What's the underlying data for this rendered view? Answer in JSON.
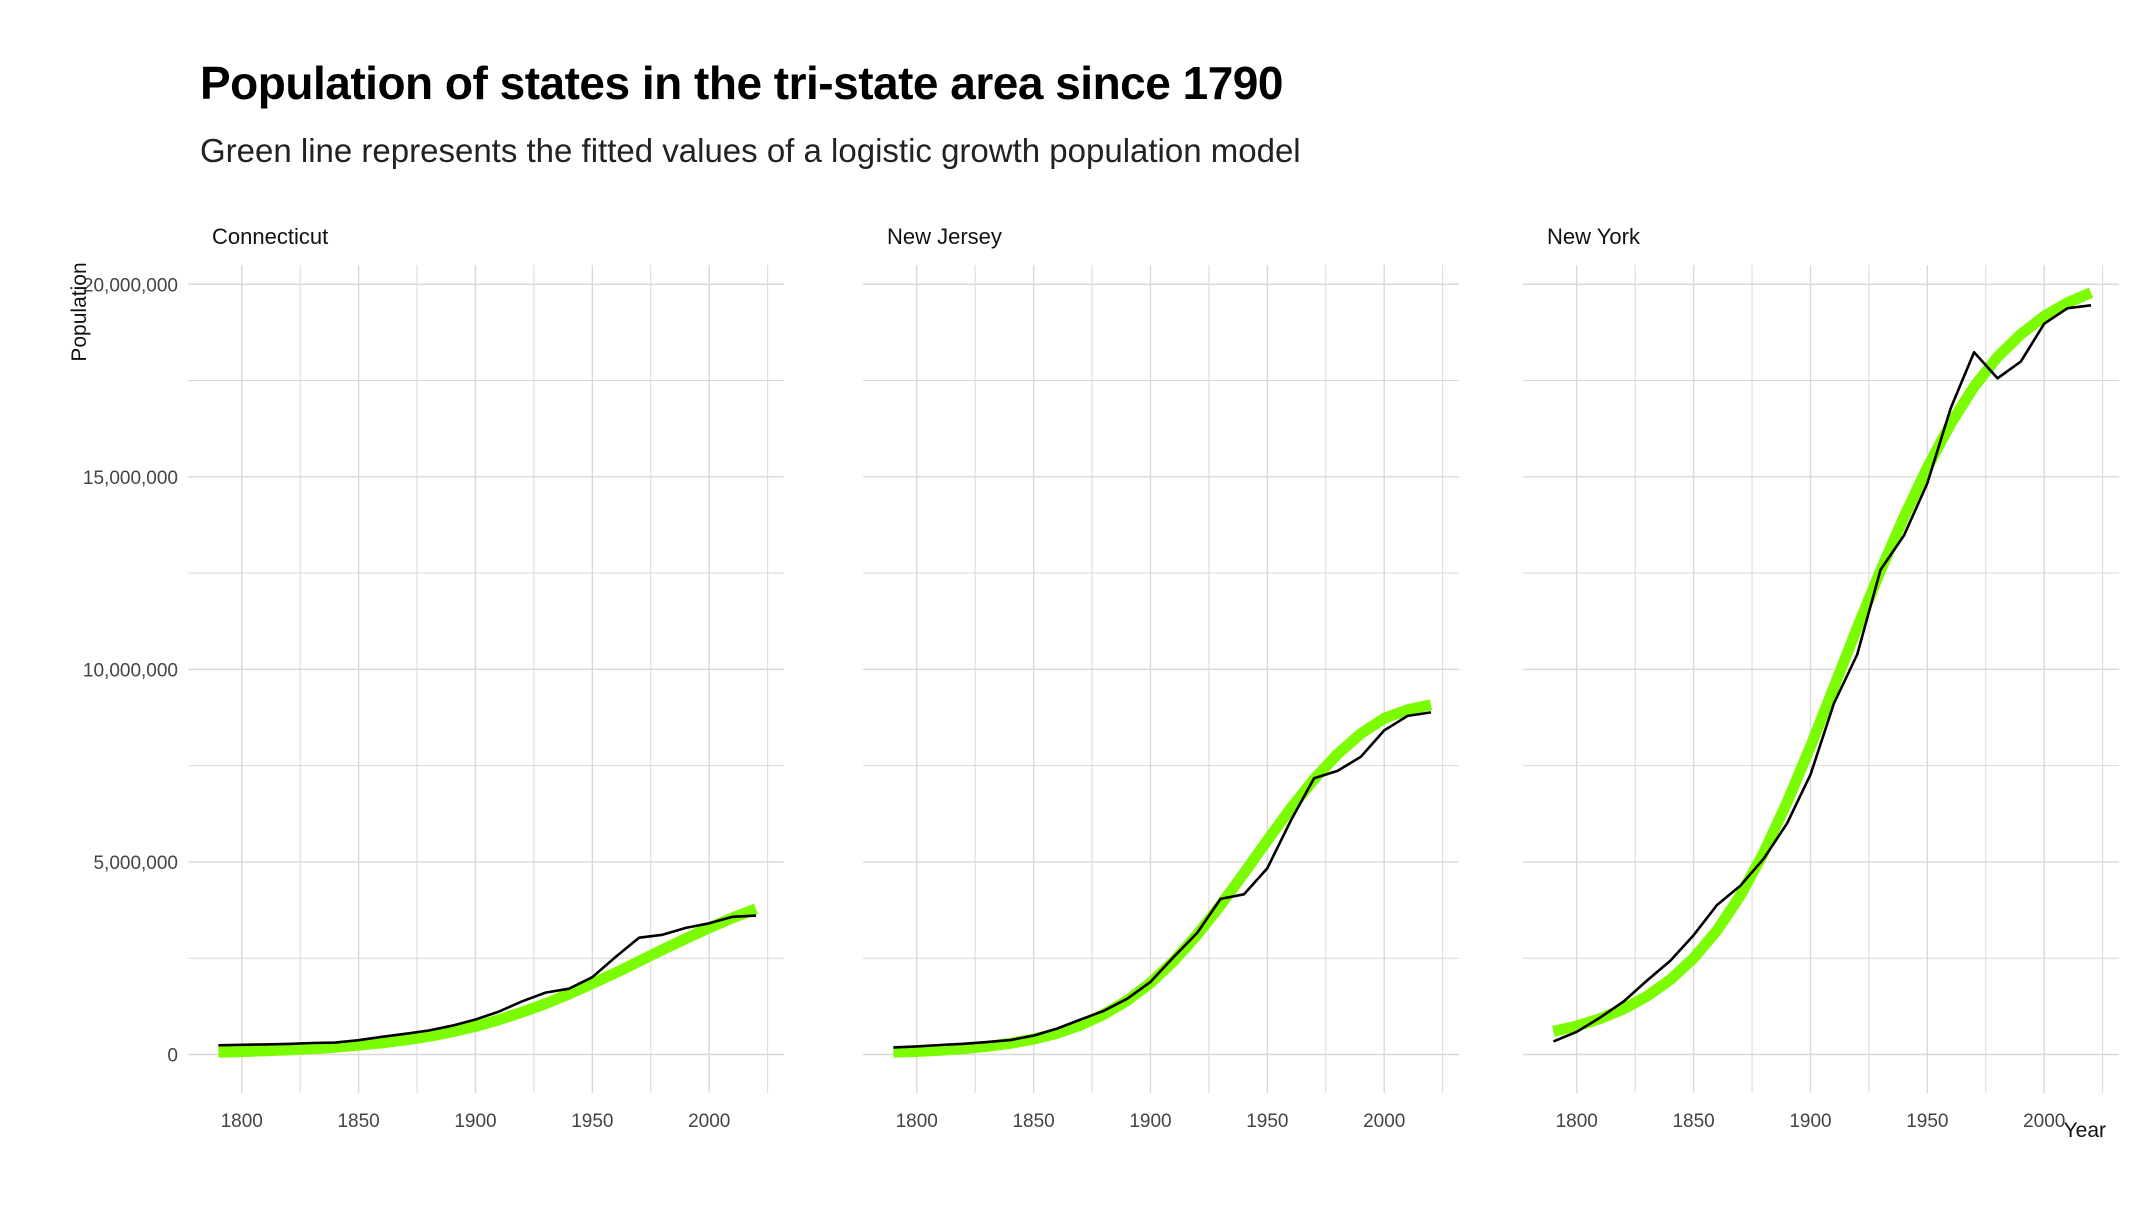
{
  "title": "Population of states in the tri-state area since 1790",
  "subtitle": "Green line represents the fitted values of a logistic growth population model",
  "colors": {
    "observed": "#000000",
    "fitted": "#7CFC00",
    "grid": "#d9d9d9",
    "axis_text": "#444444"
  },
  "chart_data": {
    "type": "line",
    "xlabel": "Year",
    "ylabel": "Population",
    "xlim": [
      1777,
      2032
    ],
    "ylim": [
      -1000000,
      20500000
    ],
    "x_ticks": [
      1800,
      1850,
      1900,
      1950,
      2000
    ],
    "x_tick_labels": [
      "1800",
      "1850",
      "1900",
      "1950",
      "2000"
    ],
    "y_ticks": [
      0,
      5000000,
      10000000,
      15000000,
      20000000
    ],
    "y_tick_labels": [
      "0",
      "5,000,000",
      "10,000,000",
      "15,000,000",
      "20,000,000"
    ],
    "grid": true,
    "facets": [
      {
        "name": "Connecticut",
        "x": [
          1790,
          1800,
          1810,
          1820,
          1830,
          1840,
          1850,
          1860,
          1870,
          1880,
          1890,
          1900,
          1910,
          1920,
          1930,
          1940,
          1950,
          1960,
          1970,
          1980,
          1990,
          2000,
          2010,
          2020
        ],
        "observed": [
          237946,
          251002,
          261942,
          275248,
          297675,
          309978,
          370792,
          460147,
          537454,
          622700,
          746258,
          908420,
          1114756,
          1380631,
          1606903,
          1709242,
          2007280,
          2535234,
          3031709,
          3107576,
          3287116,
          3405565,
          3574097,
          3605944
        ],
        "fitted": [
          60000,
          75000,
          95000,
          120000,
          150000,
          190000,
          240000,
          300000,
          380000,
          470000,
          590000,
          730000,
          900000,
          1100000,
          1320000,
          1570000,
          1840000,
          2120000,
          2420000,
          2720000,
          3010000,
          3290000,
          3550000,
          3780000
        ]
      },
      {
        "name": "New Jersey",
        "x": [
          1790,
          1800,
          1810,
          1820,
          1830,
          1840,
          1850,
          1860,
          1870,
          1880,
          1890,
          1900,
          1910,
          1920,
          1930,
          1940,
          1950,
          1960,
          1970,
          1980,
          1990,
          2000,
          2010,
          2020
        ],
        "observed": [
          184139,
          211149,
          245562,
          277575,
          320823,
          373306,
          489555,
          672035,
          906096,
          1131116,
          1444933,
          1883669,
          2537167,
          3155900,
          4041334,
          4160165,
          4835329,
          6066782,
          7171112,
          7364823,
          7730188,
          8414350,
          8791894,
          8882190
        ],
        "fitted": [
          60000,
          80000,
          110000,
          150000,
          210000,
          290000,
          400000,
          550000,
          760000,
          1040000,
          1400000,
          1860000,
          2430000,
          3110000,
          3880000,
          4710000,
          5560000,
          6390000,
          7150000,
          7800000,
          8330000,
          8730000,
          8950000,
          9080000
        ]
      },
      {
        "name": "New York",
        "x": [
          1790,
          1800,
          1810,
          1820,
          1830,
          1840,
          1850,
          1860,
          1870,
          1880,
          1890,
          1900,
          1910,
          1920,
          1930,
          1940,
          1950,
          1960,
          1970,
          1980,
          1990,
          2000,
          2010,
          2020
        ],
        "observed": [
          340120,
          589051,
          959049,
          1372812,
          1918608,
          2428921,
          3097394,
          3880735,
          4382759,
          5082871,
          6003174,
          7268894,
          9113614,
          10385227,
          12588066,
          13479142,
          14830192,
          16782304,
          18236967,
          17558072,
          17990455,
          18976457,
          19378102,
          19453561
        ],
        "fitted": [
          600000,
          740000,
          930000,
          1180000,
          1510000,
          1940000,
          2500000,
          3220000,
          4130000,
          5240000,
          6550000,
          8000000,
          9540000,
          11080000,
          12570000,
          13960000,
          15240000,
          16380000,
          17340000,
          18110000,
          18700000,
          19170000,
          19520000,
          19780000
        ]
      }
    ]
  }
}
